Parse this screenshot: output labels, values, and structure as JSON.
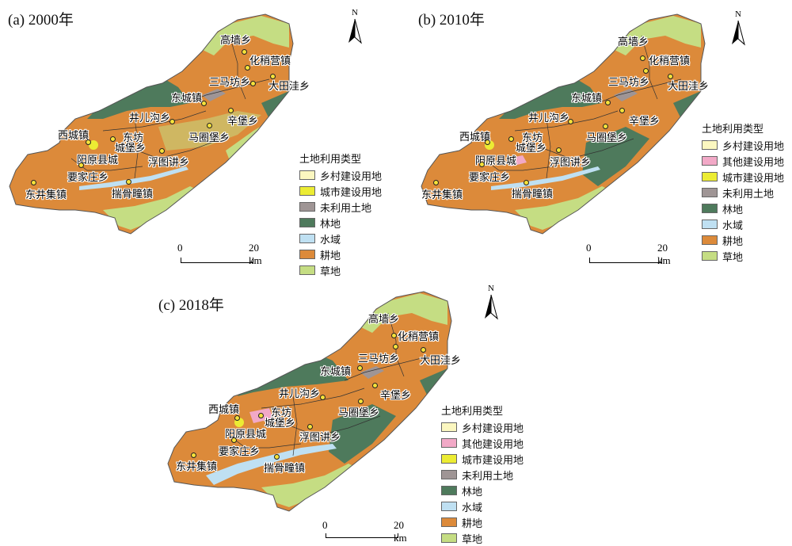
{
  "colors": {
    "rural": "#fbf7c0",
    "other_construction": "#f2a9c7",
    "urban": "#ecec33",
    "unused": "#9f9595",
    "forest": "#4e7a5c",
    "water": "#bfe0f2",
    "cropland": "#dc8a3a",
    "grassland": "#c5dd83"
  },
  "panels": [
    {
      "title": "(a) 2000年",
      "places": [
        "高墙乡",
        "化稍营镇",
        "三马坊乡",
        "大田洼乡",
        "东城镇",
        "井儿沟乡",
        "辛堡乡",
        "西城镇",
        "东坊",
        "城堡乡",
        "马圈堡乡",
        "阳原县城",
        "浮图讲乡",
        "要家庄乡",
        "东井集镇",
        "揣骨疃镇"
      ],
      "legend": {
        "title": "土地利用类型",
        "items": [
          {
            "label": "乡村建设用地",
            "color": "#fbf7c0"
          },
          {
            "label": "城市建设用地",
            "color": "#ecec33"
          },
          {
            "label": "未利用土地",
            "color": "#9f9595"
          },
          {
            "label": "林地",
            "color": "#4e7a5c"
          },
          {
            "label": "水域",
            "color": "#bfe0f2"
          },
          {
            "label": "耕地",
            "color": "#dc8a3a"
          },
          {
            "label": "草地",
            "color": "#c5dd83"
          }
        ]
      },
      "scale": {
        "start": "0",
        "end": "20 km"
      },
      "north": "N"
    },
    {
      "title": "(b) 2010年",
      "places": [
        "高墙乡",
        "化稍营镇",
        "三马坊乡",
        "大田洼乡",
        "东城镇",
        "井儿沟乡",
        "辛堡乡",
        "西城镇",
        "东坊",
        "城堡乡",
        "马圈堡乡",
        "阳原县城",
        "浮图讲乡",
        "要家庄乡",
        "东井集镇",
        "揣骨疃镇"
      ],
      "legend": {
        "title": "土地利用类型",
        "items": [
          {
            "label": "乡村建设用地",
            "color": "#fbf7c0"
          },
          {
            "label": "其他建设用地",
            "color": "#f2a9c7"
          },
          {
            "label": "城市建设用地",
            "color": "#ecec33"
          },
          {
            "label": "未利用土地",
            "color": "#9f9595"
          },
          {
            "label": "林地",
            "color": "#4e7a5c"
          },
          {
            "label": "水域",
            "color": "#bfe0f2"
          },
          {
            "label": "耕地",
            "color": "#dc8a3a"
          },
          {
            "label": "草地",
            "color": "#c5dd83"
          }
        ]
      },
      "scale": {
        "start": "0",
        "end": "20 km"
      },
      "north": "N"
    },
    {
      "title": "(c) 2018年",
      "places": [
        "高墙乡",
        "化稍营镇",
        "三马坊乡",
        "大田洼乡",
        "东城镇",
        "井儿沟乡",
        "辛堡乡",
        "西城镇",
        "东坊",
        "城堡乡",
        "马圈堡乡",
        "阳原县城",
        "浮图讲乡",
        "要家庄乡",
        "东井集镇",
        "揣骨疃镇"
      ],
      "legend": {
        "title": "土地利用类型",
        "items": [
          {
            "label": "乡村建设用地",
            "color": "#fbf7c0"
          },
          {
            "label": "其他建设用地",
            "color": "#f2a9c7"
          },
          {
            "label": "城市建设用地",
            "color": "#ecec33"
          },
          {
            "label": "未利用土地",
            "color": "#9f9595"
          },
          {
            "label": "林地",
            "color": "#4e7a5c"
          },
          {
            "label": "水域",
            "color": "#bfe0f2"
          },
          {
            "label": "耕地",
            "color": "#dc8a3a"
          },
          {
            "label": "草地",
            "color": "#c5dd83"
          }
        ]
      },
      "scale": {
        "start": "0",
        "end": "20 km"
      },
      "north": "N"
    }
  ]
}
